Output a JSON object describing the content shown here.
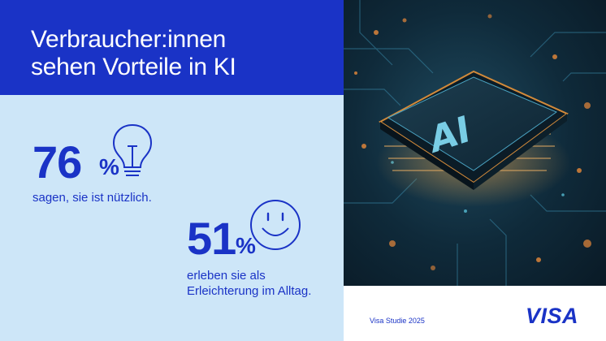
{
  "title": {
    "line1": "Verbraucher:innen",
    "line2": "sehen Vorteile in KI"
  },
  "stats": [
    {
      "number": "76",
      "unit": "%",
      "text_lines": [
        "sagen, sie ist nützlich."
      ],
      "icon": "lightbulb-icon"
    },
    {
      "number": "51",
      "unit": "%",
      "text_lines": [
        "erleben sie als",
        "Erleichterung im Alltag."
      ],
      "icon": "smiley-icon"
    }
  ],
  "image": {
    "chip_label": "AI",
    "subject": "circuit-board-chip-icon"
  },
  "footer": {
    "source": "Visa Studie 2025",
    "brand": "VISA"
  },
  "colors": {
    "brand_blue": "#1a33c6",
    "light_blue": "#cde6f8",
    "white": "#ffffff"
  }
}
